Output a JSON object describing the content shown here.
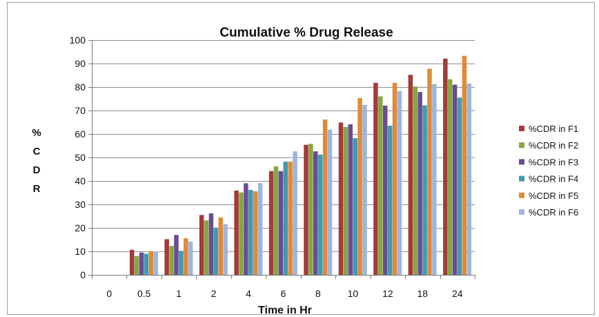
{
  "chart_data": {
    "type": "bar",
    "title": "Cumulative % Drug Release",
    "xlabel": "Time in Hr",
    "ylabel": "% C D R",
    "ylabel_chars": [
      "%",
      "C",
      "D",
      "R"
    ],
    "ylim": [
      0,
      100
    ],
    "yticks": [
      "0",
      "10",
      "20",
      "30",
      "40",
      "50",
      "60",
      "70",
      "80",
      "90",
      "100"
    ],
    "grid": "horizontal",
    "legend_position": "right",
    "categories": [
      "0",
      "0.5",
      "1",
      "2",
      "4",
      "6",
      "8",
      "10",
      "12",
      "18",
      "24"
    ],
    "series": [
      {
        "name": "%CDR in F1",
        "color": "#a33b37",
        "values": [
          0,
          10.7,
          15.2,
          25.5,
          35.9,
          44.2,
          55.4,
          64.9,
          81.8,
          85.2,
          92.1
        ]
      },
      {
        "name": "%CDR in F2",
        "color": "#86a544",
        "values": [
          0,
          8.0,
          12.3,
          23.2,
          35.1,
          46.2,
          55.8,
          63.0,
          76.0,
          80.2,
          83.3
        ]
      },
      {
        "name": "%CDR in F3",
        "color": "#6a4c93",
        "values": [
          0,
          9.5,
          17.0,
          26.2,
          39.0,
          44.2,
          52.6,
          64.1,
          72.1,
          77.9,
          81.0
        ]
      },
      {
        "name": "%CDR in F4",
        "color": "#3f9bb0",
        "values": [
          0,
          9.0,
          10.2,
          20.1,
          36.2,
          48.2,
          51.2,
          58.2,
          63.5,
          72.2,
          75.5
        ]
      },
      {
        "name": "%CDR in F5",
        "color": "#e08a37",
        "values": [
          0,
          10.1,
          15.6,
          24.4,
          35.6,
          48.2,
          66.2,
          75.3,
          81.8,
          87.8,
          93.3
        ]
      },
      {
        "name": "%CDR in F6",
        "color": "#9db6dd",
        "values": [
          0,
          10.0,
          14.2,
          21.6,
          39.1,
          52.6,
          61.9,
          72.4,
          78.3,
          81.3,
          81.5
        ]
      }
    ]
  }
}
